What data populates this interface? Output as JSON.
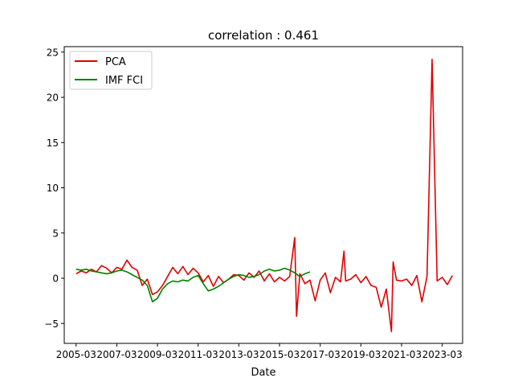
{
  "chart_data": {
    "type": "line",
    "title": "correlation : 0.461",
    "xlabel": "Date",
    "ylabel": "",
    "xlim": [
      "2004-08",
      "2024-03"
    ],
    "ylim": [
      -7.2,
      25.6
    ],
    "grid": false,
    "legend_position": "top-left",
    "x_ticks": [
      "2005-03",
      "2007-03",
      "2009-03",
      "2011-03",
      "2013-03",
      "2015-03",
      "2017-03",
      "2019-03",
      "2021-03",
      "2023-03"
    ],
    "y_ticks": [
      -5,
      0,
      5,
      10,
      15,
      20,
      25
    ],
    "series": [
      {
        "name": "PCA",
        "color": "#e00000",
        "points": [
          [
            "2005-03",
            0.5
          ],
          [
            "2005-06",
            0.8
          ],
          [
            "2005-09",
            0.6
          ],
          [
            "2005-12",
            1.0
          ],
          [
            "2006-03",
            0.7
          ],
          [
            "2006-06",
            1.4
          ],
          [
            "2006-09",
            1.1
          ],
          [
            "2006-12",
            0.6
          ],
          [
            "2007-03",
            1.2
          ],
          [
            "2007-06",
            1.0
          ],
          [
            "2007-09",
            2.0
          ],
          [
            "2007-12",
            1.2
          ],
          [
            "2008-03",
            0.9
          ],
          [
            "2008-06",
            -0.8
          ],
          [
            "2008-09",
            -0.1
          ],
          [
            "2008-12",
            -1.8
          ],
          [
            "2009-03",
            -1.5
          ],
          [
            "2009-06",
            -0.8
          ],
          [
            "2009-09",
            0.2
          ],
          [
            "2009-12",
            1.2
          ],
          [
            "2010-03",
            0.5
          ],
          [
            "2010-06",
            1.3
          ],
          [
            "2010-09",
            0.4
          ],
          [
            "2010-12",
            1.1
          ],
          [
            "2011-03",
            0.6
          ],
          [
            "2011-06",
            -0.4
          ],
          [
            "2011-09",
            0.3
          ],
          [
            "2011-12",
            -0.9
          ],
          [
            "2012-03",
            0.2
          ],
          [
            "2012-06",
            -0.5
          ],
          [
            "2012-09",
            -0.1
          ],
          [
            "2012-12",
            0.4
          ],
          [
            "2013-03",
            0.3
          ],
          [
            "2013-06",
            -0.2
          ],
          [
            "2013-09",
            0.6
          ],
          [
            "2013-12",
            0.1
          ],
          [
            "2014-03",
            0.8
          ],
          [
            "2014-06",
            -0.3
          ],
          [
            "2014-09",
            0.5
          ],
          [
            "2014-12",
            -0.4
          ],
          [
            "2015-03",
            0.1
          ],
          [
            "2015-06",
            -0.3
          ],
          [
            "2015-09",
            0.2
          ],
          [
            "2015-12",
            4.5
          ],
          [
            "2016-01",
            -4.2
          ],
          [
            "2016-03",
            0.5
          ],
          [
            "2016-06",
            -0.6
          ],
          [
            "2016-09",
            -0.2
          ],
          [
            "2016-12",
            -2.5
          ],
          [
            "2017-03",
            -0.2
          ],
          [
            "2017-06",
            0.6
          ],
          [
            "2017-09",
            -1.6
          ],
          [
            "2017-12",
            0.1
          ],
          [
            "2018-03",
            -0.4
          ],
          [
            "2018-05",
            3.0
          ],
          [
            "2018-06",
            -0.3
          ],
          [
            "2018-09",
            -0.1
          ],
          [
            "2018-12",
            0.4
          ],
          [
            "2019-03",
            -0.5
          ],
          [
            "2019-06",
            0.2
          ],
          [
            "2019-09",
            -0.8
          ],
          [
            "2019-12",
            -1.0
          ],
          [
            "2020-03",
            -3.2
          ],
          [
            "2020-06",
            -1.2
          ],
          [
            "2020-09",
            -5.9
          ],
          [
            "2020-10",
            1.8
          ],
          [
            "2020-12",
            -0.2
          ],
          [
            "2021-03",
            -0.3
          ],
          [
            "2021-06",
            -0.1
          ],
          [
            "2021-09",
            -0.8
          ],
          [
            "2021-12",
            0.3
          ],
          [
            "2022-03",
            -2.6
          ],
          [
            "2022-06",
            0.2
          ],
          [
            "2022-09",
            24.2
          ],
          [
            "2022-12",
            -0.3
          ],
          [
            "2023-03",
            0.1
          ],
          [
            "2023-06",
            -0.7
          ],
          [
            "2023-09",
            0.3
          ]
        ]
      },
      {
        "name": "IMF FCI",
        "color": "#008000",
        "points": [
          [
            "2005-03",
            1.0
          ],
          [
            "2005-06",
            0.9
          ],
          [
            "2005-09",
            1.0
          ],
          [
            "2005-12",
            0.8
          ],
          [
            "2006-03",
            0.7
          ],
          [
            "2006-06",
            0.6
          ],
          [
            "2006-09",
            0.5
          ],
          [
            "2006-12",
            0.6
          ],
          [
            "2007-03",
            0.8
          ],
          [
            "2007-06",
            0.9
          ],
          [
            "2007-09",
            0.7
          ],
          [
            "2007-12",
            0.4
          ],
          [
            "2008-03",
            0.1
          ],
          [
            "2008-06",
            -0.2
          ],
          [
            "2008-09",
            -0.8
          ],
          [
            "2008-12",
            -2.6
          ],
          [
            "2009-03",
            -2.2
          ],
          [
            "2009-06",
            -1.2
          ],
          [
            "2009-09",
            -0.6
          ],
          [
            "2009-12",
            -0.3
          ],
          [
            "2010-03",
            -0.4
          ],
          [
            "2010-06",
            -0.2
          ],
          [
            "2010-09",
            -0.3
          ],
          [
            "2010-12",
            0.1
          ],
          [
            "2011-03",
            0.3
          ],
          [
            "2011-06",
            -0.6
          ],
          [
            "2011-09",
            -1.4
          ],
          [
            "2011-12",
            -1.2
          ],
          [
            "2012-03",
            -0.9
          ],
          [
            "2012-06",
            -0.5
          ],
          [
            "2012-09",
            -0.1
          ],
          [
            "2012-12",
            0.2
          ],
          [
            "2013-03",
            0.4
          ],
          [
            "2013-06",
            0.3
          ],
          [
            "2013-09",
            0.1
          ],
          [
            "2013-12",
            0.2
          ],
          [
            "2014-03",
            0.4
          ],
          [
            "2014-06",
            0.8
          ],
          [
            "2014-09",
            1.0
          ],
          [
            "2014-12",
            0.8
          ],
          [
            "2015-03",
            0.9
          ],
          [
            "2015-06",
            1.1
          ],
          [
            "2015-09",
            0.9
          ],
          [
            "2015-12",
            0.6
          ],
          [
            "2016-03",
            0.2
          ],
          [
            "2016-06",
            0.5
          ],
          [
            "2016-09",
            0.7
          ]
        ]
      }
    ]
  }
}
